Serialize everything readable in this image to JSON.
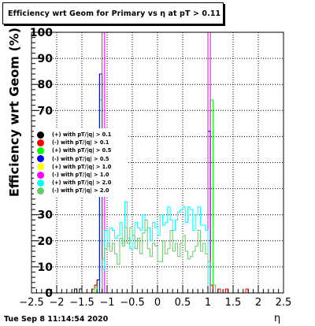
{
  "chart_data": {
    "type": "histogram",
    "title": "Efficiency wrt Geom for Primary vs   η at pT > 0.11",
    "xlabel": "η",
    "ylabel": "Efficiency wrt Geom (%)",
    "xlim": [
      -2.5,
      2.5
    ],
    "ylim": [
      0,
      100
    ],
    "x_ticks": [
      "−2.5",
      "−2",
      "−1.5",
      "−1",
      "−0.5",
      "0",
      "0.5",
      "1",
      "1.5",
      "2",
      "2.5"
    ],
    "y_ticks": [
      "0",
      "10",
      "20",
      "30",
      "40",
      "50",
      "60",
      "70",
      "80",
      "90",
      "100"
    ],
    "grid": true,
    "legend_position": "left-middle",
    "bin_width": 0.05,
    "series": [
      {
        "name": "(+) with pT/|q| > 0.1",
        "color": "#000000",
        "points": [
          [
            -1.625,
            1.5
          ],
          [
            -1.525,
            1.5
          ],
          [
            -1.275,
            1.5
          ],
          [
            -1.225,
            3.0
          ],
          [
            -1.175,
            5.0
          ],
          [
            -1.125,
            84.0
          ],
          [
            1.025,
            62.0
          ],
          [
            1.075,
            3.0
          ],
          [
            1.375,
            1.5
          ]
        ]
      },
      {
        "name": "(-) with pT/|q| > 0.1",
        "color": "#ff0000",
        "points": [
          [
            -1.275,
            1.5
          ],
          [
            -1.225,
            3.0
          ],
          [
            1.075,
            3.0
          ],
          [
            1.225,
            1.5
          ],
          [
            1.375,
            1.5
          ],
          [
            1.775,
            1.5
          ]
        ]
      },
      {
        "name": "(+) with pT/|q| > 0.5",
        "color": "#00ff00",
        "points": [
          [
            -1.225,
            2.0
          ],
          [
            -1.125,
            74.0
          ],
          [
            1.075,
            74.0
          ],
          [
            1.125,
            3.0
          ]
        ]
      },
      {
        "name": "(-) with pT/|q| > 0.5",
        "color": "#0000ff",
        "points": [
          [
            -1.125,
            84.0
          ],
          [
            1.025,
            62.0
          ]
        ]
      },
      {
        "name": "(+) with pT/|q| > 1.0",
        "color": "#ffff00",
        "points": []
      },
      {
        "name": "(-) with pT/|q| > 1.0",
        "color": "#ff00ff",
        "points": [
          [
            -1.075,
            100.0
          ],
          [
            1.025,
            100.0
          ]
        ]
      },
      {
        "name": "(+) with pT/|q| > 2.0",
        "color": "#00ffff",
        "points": [
          [
            -1.075,
            9.0
          ],
          [
            -1.025,
            24.0
          ],
          [
            -0.975,
            18.0
          ],
          [
            -0.925,
            25.0
          ],
          [
            -0.875,
            24.0
          ],
          [
            -0.825,
            21.0
          ],
          [
            -0.775,
            22.0
          ],
          [
            -0.725,
            27.0
          ],
          [
            -0.675,
            19.0
          ],
          [
            -0.625,
            35.0
          ],
          [
            -0.575,
            21.0
          ],
          [
            -0.525,
            17.0
          ],
          [
            -0.475,
            22.0
          ],
          [
            -0.425,
            27.0
          ],
          [
            -0.375,
            25.0
          ],
          [
            -0.325,
            24.0
          ],
          [
            -0.275,
            30.0
          ],
          [
            -0.225,
            24.0
          ],
          [
            -0.175,
            25.0
          ],
          [
            -0.125,
            20.0
          ],
          [
            -0.075,
            27.0
          ],
          [
            -0.025,
            25.0
          ],
          [
            0.025,
            22.0
          ],
          [
            0.075,
            30.0
          ],
          [
            0.125,
            26.0
          ],
          [
            0.175,
            27.0
          ],
          [
            0.225,
            33.0
          ],
          [
            0.275,
            28.0
          ],
          [
            0.325,
            24.0
          ],
          [
            0.375,
            28.0
          ],
          [
            0.425,
            31.0
          ],
          [
            0.475,
            32.0
          ],
          [
            0.525,
            33.0
          ],
          [
            0.575,
            27.0
          ],
          [
            0.625,
            33.0
          ],
          [
            0.675,
            32.0
          ],
          [
            0.725,
            24.0
          ],
          [
            0.775,
            30.0
          ],
          [
            0.825,
            33.0
          ],
          [
            0.875,
            26.0
          ],
          [
            0.925,
            26.0
          ],
          [
            0.975,
            24.0
          ]
        ]
      },
      {
        "name": "(-) with pT/|q| > 2.0",
        "color": "#66cc66",
        "points": [
          [
            -1.075,
            13.0
          ],
          [
            -1.025,
            17.0
          ],
          [
            -0.975,
            19.0
          ],
          [
            -0.925,
            16.0
          ],
          [
            -0.875,
            19.0
          ],
          [
            -0.825,
            15.0
          ],
          [
            -0.775,
            11.0
          ],
          [
            -0.725,
            21.0
          ],
          [
            -0.675,
            18.0
          ],
          [
            -0.625,
            25.0
          ],
          [
            -0.575,
            19.0
          ],
          [
            -0.525,
            25.0
          ],
          [
            -0.475,
            22.0
          ],
          [
            -0.425,
            17.0
          ],
          [
            -0.375,
            21.0
          ],
          [
            -0.325,
            15.0
          ],
          [
            -0.275,
            23.0
          ],
          [
            -0.225,
            28.0
          ],
          [
            -0.175,
            17.0
          ],
          [
            -0.125,
            14.0
          ],
          [
            -0.075,
            19.0
          ],
          [
            -0.025,
            18.0
          ],
          [
            0.025,
            12.0
          ],
          [
            0.075,
            12.0
          ],
          [
            0.125,
            20.0
          ],
          [
            0.175,
            15.0
          ],
          [
            0.225,
            17.0
          ],
          [
            0.275,
            24.0
          ],
          [
            0.325,
            16.0
          ],
          [
            0.375,
            19.0
          ],
          [
            0.425,
            14.0
          ],
          [
            0.475,
            19.0
          ],
          [
            0.525,
            22.0
          ],
          [
            0.575,
            16.0
          ],
          [
            0.625,
            13.0
          ],
          [
            0.675,
            14.0
          ],
          [
            0.725,
            16.0
          ],
          [
            0.775,
            18.0
          ],
          [
            0.825,
            24.0
          ],
          [
            0.875,
            16.0
          ],
          [
            0.925,
            19.0
          ],
          [
            0.975,
            15.0
          ],
          [
            1.025,
            12.0
          ]
        ]
      }
    ]
  },
  "timestamp": "Tue Sep  8 11:14:54 2020"
}
